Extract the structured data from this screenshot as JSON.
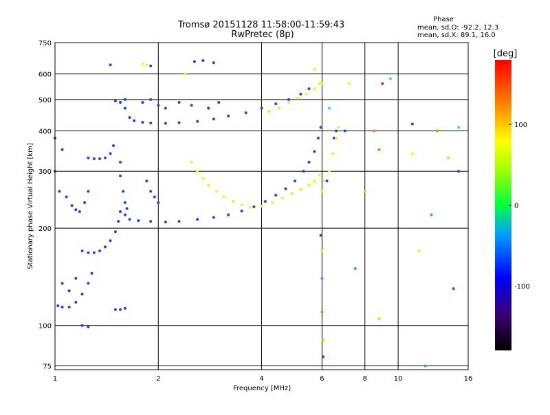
{
  "title_line1": "Tromsø 20151128 11:58:00-11:59:43",
  "title_line2": "RwPretec (8p)",
  "phase_stats": {
    "header": "Phase",
    "line_o": "mean, sd,O: -92.2, 12.3",
    "line_x": "mean, sd,X:  89.1, 16.0"
  },
  "colorbar": {
    "unit_label": "[deg]",
    "range": [
      -180,
      180
    ],
    "ticks": [
      {
        "value": 100,
        "label": "100"
      },
      {
        "value": 0,
        "label": "0"
      },
      {
        "value": -100,
        "label": "-100"
      }
    ]
  },
  "colors": {
    "o_mode": "#2040e8",
    "x_mode": "#f0f020",
    "gridline": "#000000"
  },
  "chart_data": {
    "type": "scatter",
    "xlabel": "Frequency [MHz]",
    "ylabel": "Stationary phase Virtual Height [km]",
    "x_scale": "log",
    "y_scale": "log",
    "xlim": [
      1,
      16
    ],
    "ylim": [
      73,
      750
    ],
    "x_ticks": [
      {
        "value": 1,
        "label": "1"
      },
      {
        "value": 2,
        "label": "2"
      },
      {
        "value": 4,
        "label": "4"
      },
      {
        "value": 6,
        "label": "6"
      },
      {
        "value": 8,
        "label": "8"
      },
      {
        "value": 10,
        "label": "10"
      },
      {
        "value": 16,
        "label": "16"
      }
    ],
    "y_ticks": [
      {
        "value": 75,
        "label": "75"
      },
      {
        "value": 100,
        "label": "100"
      },
      {
        "value": 200,
        "label": "200"
      },
      {
        "value": 300,
        "label": "300"
      },
      {
        "value": 400,
        "label": "400"
      },
      {
        "value": 500,
        "label": "500"
      },
      {
        "value": 600,
        "label": "600"
      },
      {
        "value": 750,
        "label": "750"
      }
    ],
    "grid": true,
    "series": [
      {
        "name": "",
        "mode": "O",
        "color_role": "o_mode",
        "points": [
          [
            1.02,
            115
          ],
          [
            1.05,
            114
          ],
          [
            1.1,
            114
          ],
          [
            1.15,
            118
          ],
          [
            1.2,
            125
          ],
          [
            1.25,
            135
          ],
          [
            1.28,
            145
          ],
          [
            1.2,
            170
          ],
          [
            1.25,
            168
          ],
          [
            1.3,
            168
          ],
          [
            1.35,
            170
          ],
          [
            1.4,
            175
          ],
          [
            1.45,
            183
          ],
          [
            1.5,
            195
          ],
          [
            1.53,
            210
          ],
          [
            1.55,
            225
          ],
          [
            1.6,
            220
          ],
          [
            1.65,
            213
          ],
          [
            1.75,
            211
          ],
          [
            1.9,
            210
          ],
          [
            2.1,
            209
          ],
          [
            2.3,
            210
          ],
          [
            2.6,
            213
          ],
          [
            2.9,
            216
          ],
          [
            3.2,
            220
          ],
          [
            3.5,
            226
          ],
          [
            3.8,
            233
          ],
          [
            4.1,
            242
          ],
          [
            4.4,
            253
          ],
          [
            4.7,
            265
          ],
          [
            5.0,
            280
          ],
          [
            5.3,
            300
          ],
          [
            5.5,
            320
          ],
          [
            5.7,
            345
          ],
          [
            5.85,
            380
          ],
          [
            5.95,
            410
          ],
          [
            1.6,
            470
          ],
          [
            1.65,
            440
          ],
          [
            1.7,
            430
          ],
          [
            1.8,
            425
          ],
          [
            1.9,
            423
          ],
          [
            2.1,
            422
          ],
          [
            2.3,
            424
          ],
          [
            2.6,
            428
          ],
          [
            2.9,
            435
          ],
          [
            3.2,
            445
          ],
          [
            3.6,
            455
          ],
          [
            4.0,
            470
          ],
          [
            4.4,
            485
          ],
          [
            4.8,
            500
          ],
          [
            5.2,
            520
          ],
          [
            5.5,
            540
          ],
          [
            1.25,
            330
          ],
          [
            1.3,
            328
          ],
          [
            1.35,
            328
          ],
          [
            1.4,
            330
          ],
          [
            1.45,
            340
          ],
          [
            1.48,
            360
          ],
          [
            1.03,
            260
          ],
          [
            1.08,
            250
          ],
          [
            1.12,
            235
          ],
          [
            1.15,
            228
          ],
          [
            1.18,
            225
          ],
          [
            1.22,
            240
          ],
          [
            1.25,
            260
          ],
          [
            1.55,
            320
          ],
          [
            1.55,
            290
          ],
          [
            1.58,
            260
          ],
          [
            1.6,
            240
          ],
          [
            1.62,
            230
          ],
          [
            1.85,
            280
          ],
          [
            1.9,
            260
          ],
          [
            1.95,
            250
          ],
          [
            2.0,
            240
          ],
          [
            1.5,
            495
          ],
          [
            1.55,
            490
          ],
          [
            1.6,
            500
          ],
          [
            1.8,
            490
          ],
          [
            1.9,
            500
          ],
          [
            2.0,
            480
          ],
          [
            2.1,
            470
          ],
          [
            2.3,
            490
          ],
          [
            2.5,
            480
          ],
          [
            2.8,
            470
          ],
          [
            3.0,
            490
          ],
          [
            1.45,
            640
          ],
          [
            1.9,
            635
          ],
          [
            2.55,
            655
          ],
          [
            2.7,
            660
          ],
          [
            2.9,
            650
          ],
          [
            1.5,
            112
          ],
          [
            1.55,
            112
          ],
          [
            1.6,
            113
          ],
          [
            1.05,
            135
          ],
          [
            1.1,
            128
          ],
          [
            1.15,
            140
          ],
          [
            1.0,
            300
          ],
          [
            1.0,
            380
          ],
          [
            1.05,
            350
          ],
          [
            1.2,
            100
          ],
          [
            1.25,
            99
          ],
          [
            6.2,
            280
          ],
          [
            6.5,
            380
          ],
          [
            7.0,
            400
          ]
        ]
      },
      {
        "name": "",
        "mode": "X",
        "color_role": "x_mode",
        "points": [
          [
            2.5,
            320
          ],
          [
            2.6,
            300
          ],
          [
            2.7,
            285
          ],
          [
            2.8,
            272
          ],
          [
            2.95,
            260
          ],
          [
            3.1,
            250
          ],
          [
            3.3,
            242
          ],
          [
            3.5,
            236
          ],
          [
            3.7,
            232
          ],
          [
            4.0,
            234
          ],
          [
            4.3,
            240
          ],
          [
            4.6,
            248
          ],
          [
            4.9,
            256
          ],
          [
            5.2,
            264
          ],
          [
            5.5,
            272
          ],
          [
            5.7,
            280
          ],
          [
            5.9,
            292
          ],
          [
            6.0,
            260
          ],
          [
            6.1,
            280
          ],
          [
            6.3,
            300
          ],
          [
            6.45,
            340
          ],
          [
            6.6,
            380
          ],
          [
            6.7,
            410
          ],
          [
            4.2,
            460
          ],
          [
            4.5,
            470
          ],
          [
            4.8,
            490
          ],
          [
            5.1,
            505
          ],
          [
            5.4,
            520
          ],
          [
            5.7,
            540
          ],
          [
            5.9,
            560
          ],
          [
            1.8,
            645
          ],
          [
            1.85,
            640
          ],
          [
            5.7,
            620
          ],
          [
            6.0,
            560
          ],
          [
            2.4,
            600
          ]
        ]
      },
      {
        "name": "",
        "mode": "scatter",
        "color_role": "mixed",
        "points": [
          [
            5.95,
            190
          ],
          [
            6.0,
            170
          ],
          [
            6.0,
            140
          ],
          [
            6.0,
            110
          ],
          [
            6.05,
            90
          ],
          [
            6.05,
            80
          ],
          [
            6.3,
            470
          ],
          [
            6.6,
            400
          ],
          [
            7.2,
            560
          ],
          [
            7.5,
            150
          ],
          [
            8.5,
            400
          ],
          [
            8.8,
            105
          ],
          [
            9.0,
            560
          ],
          [
            9.5,
            580
          ],
          [
            11.0,
            420
          ],
          [
            11.5,
            170
          ],
          [
            12.0,
            75
          ],
          [
            13.0,
            400
          ],
          [
            14.0,
            330
          ],
          [
            14.5,
            130
          ],
          [
            15.0,
            410
          ],
          [
            15.0,
            300
          ],
          [
            11.0,
            340
          ],
          [
            12.5,
            220
          ],
          [
            8.8,
            350
          ],
          [
            8.0,
            260
          ]
        ]
      }
    ]
  }
}
